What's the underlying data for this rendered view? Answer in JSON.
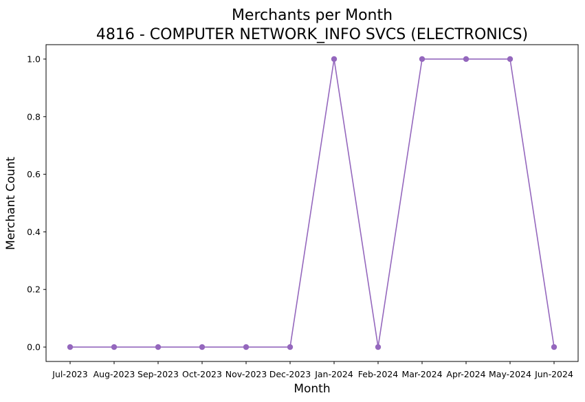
{
  "chart_data": {
    "type": "line",
    "title": "Merchants per Month",
    "subtitle": "4816 - COMPUTER NETWORK_INFO SVCS (ELECTRONICS)",
    "xlabel": "Month",
    "ylabel": "Merchant Count",
    "categories": [
      "Jul-2023",
      "Aug-2023",
      "Sep-2023",
      "Oct-2023",
      "Nov-2023",
      "Dec-2023",
      "Jan-2024",
      "Feb-2024",
      "Mar-2024",
      "Apr-2024",
      "May-2024",
      "Jun-2024"
    ],
    "series": [
      {
        "values": [
          0,
          0,
          0,
          0,
          0,
          0,
          1,
          0,
          1,
          1,
          1,
          0
        ],
        "color": "#9467bd",
        "marker": "circle"
      }
    ],
    "ylim": [
      -0.05,
      1.05
    ],
    "yticks": [
      0.0,
      0.2,
      0.4,
      0.6,
      0.8,
      1.0
    ],
    "ytick_labels": [
      "0.0",
      "0.2",
      "0.4",
      "0.6",
      "0.8",
      "1.0"
    ],
    "grid": false,
    "legend": "none"
  }
}
